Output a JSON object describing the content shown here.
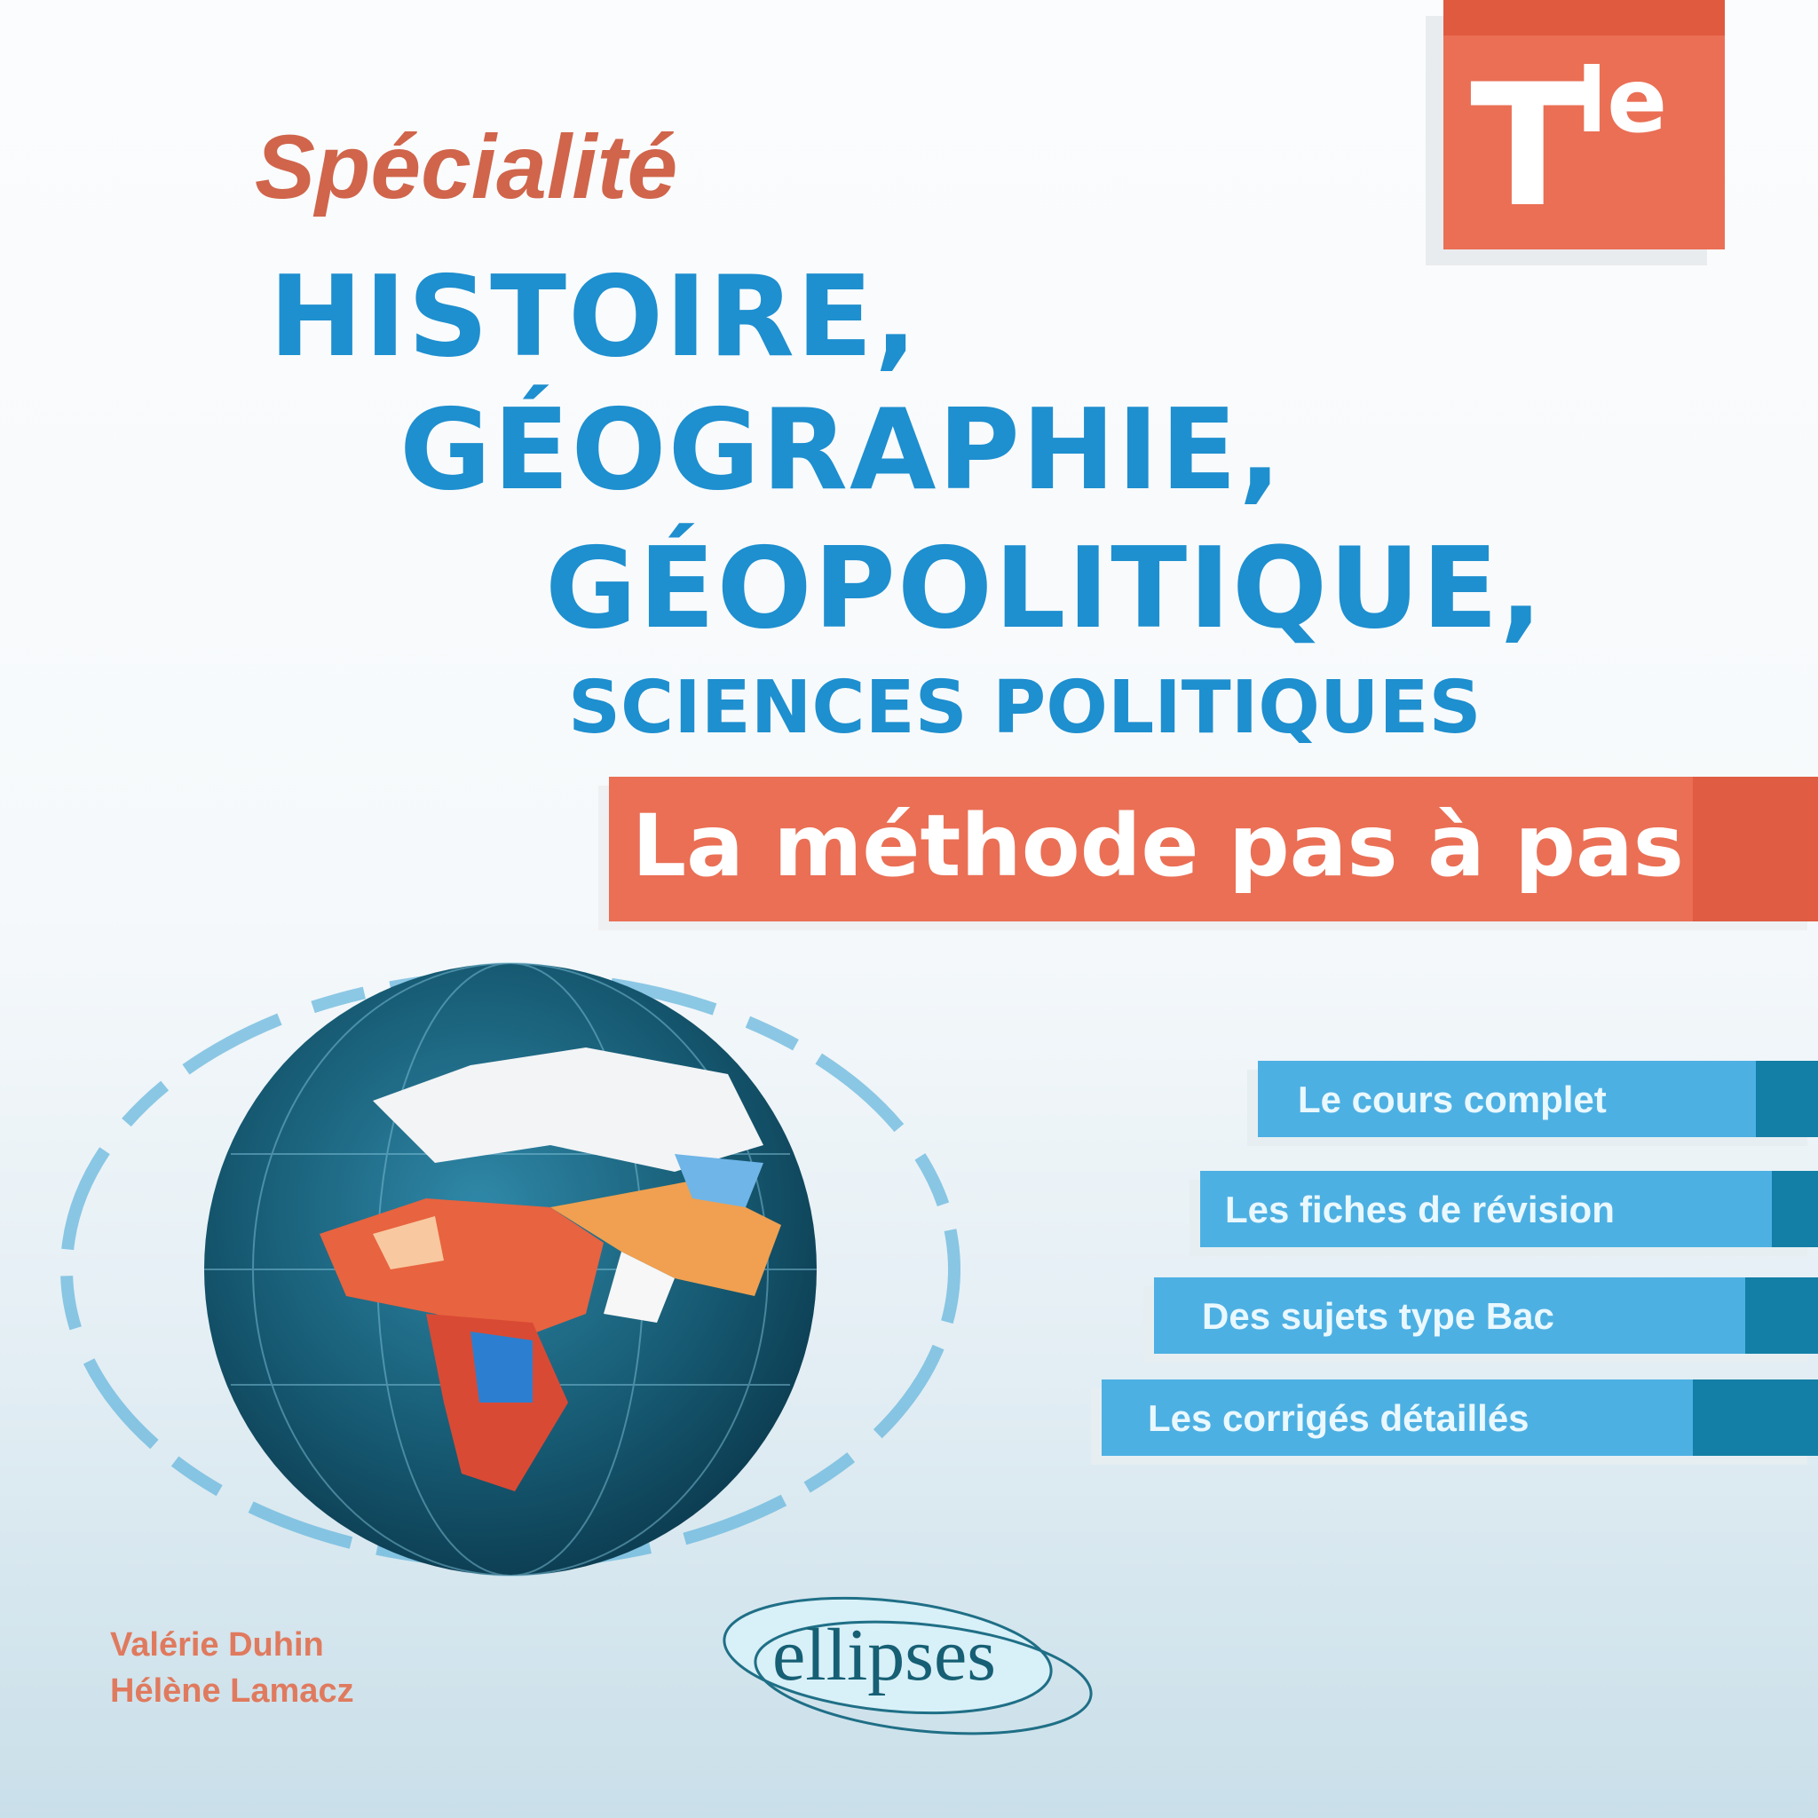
{
  "level_badge": {
    "letter": "T",
    "superscript": "le"
  },
  "title": {
    "kicker": "Spécialité",
    "lines": [
      "HISTOIRE,",
      "GÉOGRAPHIE,",
      "GÉOPOLITIQUE,"
    ],
    "subline": "SCIENCES POLITIQUES"
  },
  "banner": "La méthode pas à pas",
  "features": [
    "Le cours complet",
    "Les fiches de révision",
    "Des sujets type Bac",
    "Les corrigés détaillés"
  ],
  "authors": [
    "Valérie Duhin",
    "Hélène Lamacz"
  ],
  "publisher": "ellipses",
  "colors": {
    "accent_red": "#ea6f55",
    "title_blue": "#1e8fcf",
    "bar_blue": "#4db0e2",
    "bar_dark": "#147fa6"
  }
}
